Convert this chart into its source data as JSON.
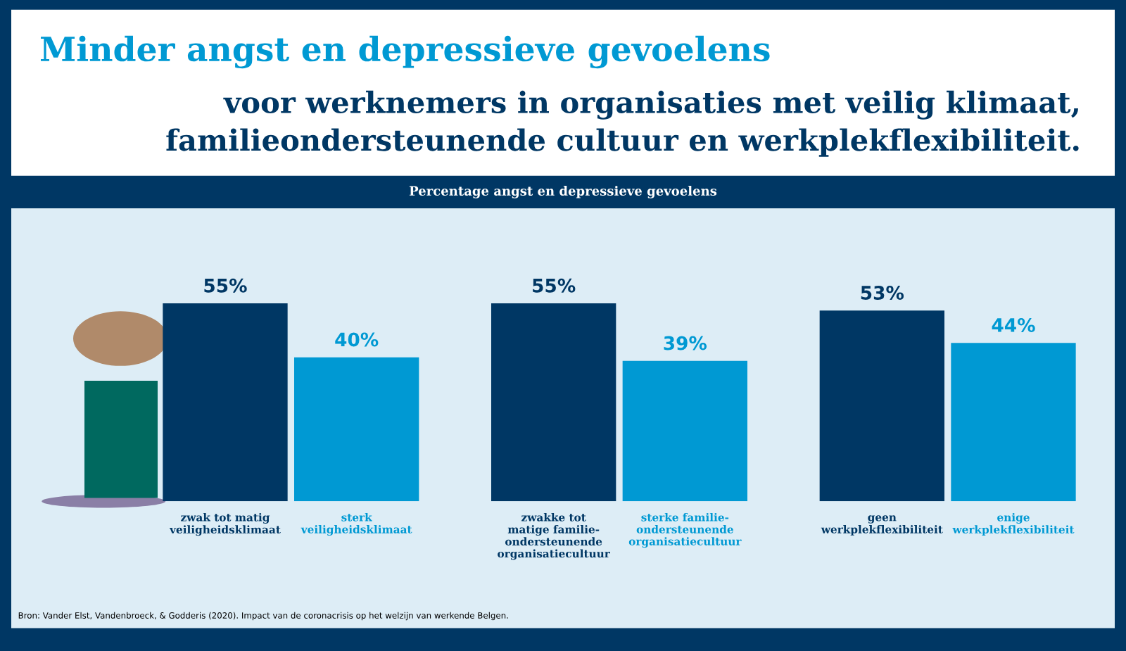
{
  "chart_data": {
    "type": "bar",
    "title": "Minder angst en depressieve gevoelens",
    "subtitle": "voor werknemers in organisaties met veilig klimaat,\nfamilieondersteunende cultuur en werkplekflexibiliteit.",
    "categories": [
      "zwak tot matig\nveiligheidsklimaat",
      "sterk\nveiligheidsklimaat",
      "zwakke tot\nmatige familie-\nondersteunende\norganisatiecultuur",
      "sterke familie-\nondersteunende\norganisatiecultuur",
      "geen\nwerkplekflexibiliteit",
      "enige\nwerkplekflexibiliteit"
    ],
    "values": [
      55,
      40,
      55,
      39,
      53,
      44
    ],
    "colors": [
      "#003764",
      "#0099d3",
      "#003764",
      "#0099d3",
      "#003764",
      "#0099d3"
    ],
    "value_labels": [
      "55%",
      "40%",
      "55%",
      "39%",
      "53%",
      "44%"
    ],
    "annotations": [
      "Percentage angst en depressieve gevoelens",
      "Bron: Vander Elst, Vandenbroeck, & Godderis (2020). Impact van de coronacrisis op het welzijn van werkende Belgen."
    ]
  }
}
